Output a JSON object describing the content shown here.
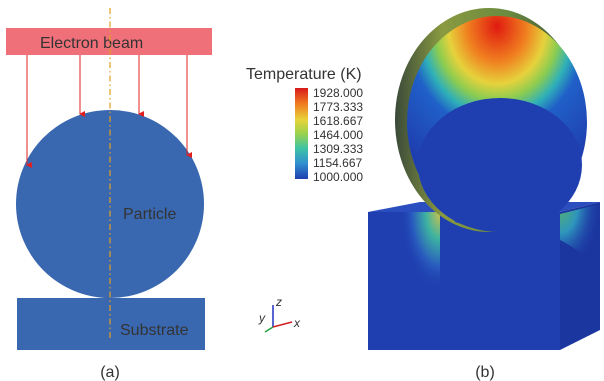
{
  "panel_a": {
    "beam_label": "Electron beam",
    "particle_label": "Particle",
    "substrate_label": "Substrate",
    "caption": "(a)"
  },
  "legend": {
    "title": "Temperature (K)",
    "ticks": [
      "1928.000",
      "1773.333",
      "1618.667",
      "1464.000",
      "1309.333",
      "1154.667",
      "1000.000"
    ]
  },
  "axes": {
    "z": "z",
    "y": "y",
    "x": "x"
  },
  "panel_b": {
    "caption": "(b)"
  },
  "colors": {
    "beam": "#f0707a",
    "particle": "#3a68b0",
    "arrow": "#e02020",
    "axis_line": "#e0a020",
    "model_blue": "#1f3fb0",
    "hot": "#e02010"
  }
}
